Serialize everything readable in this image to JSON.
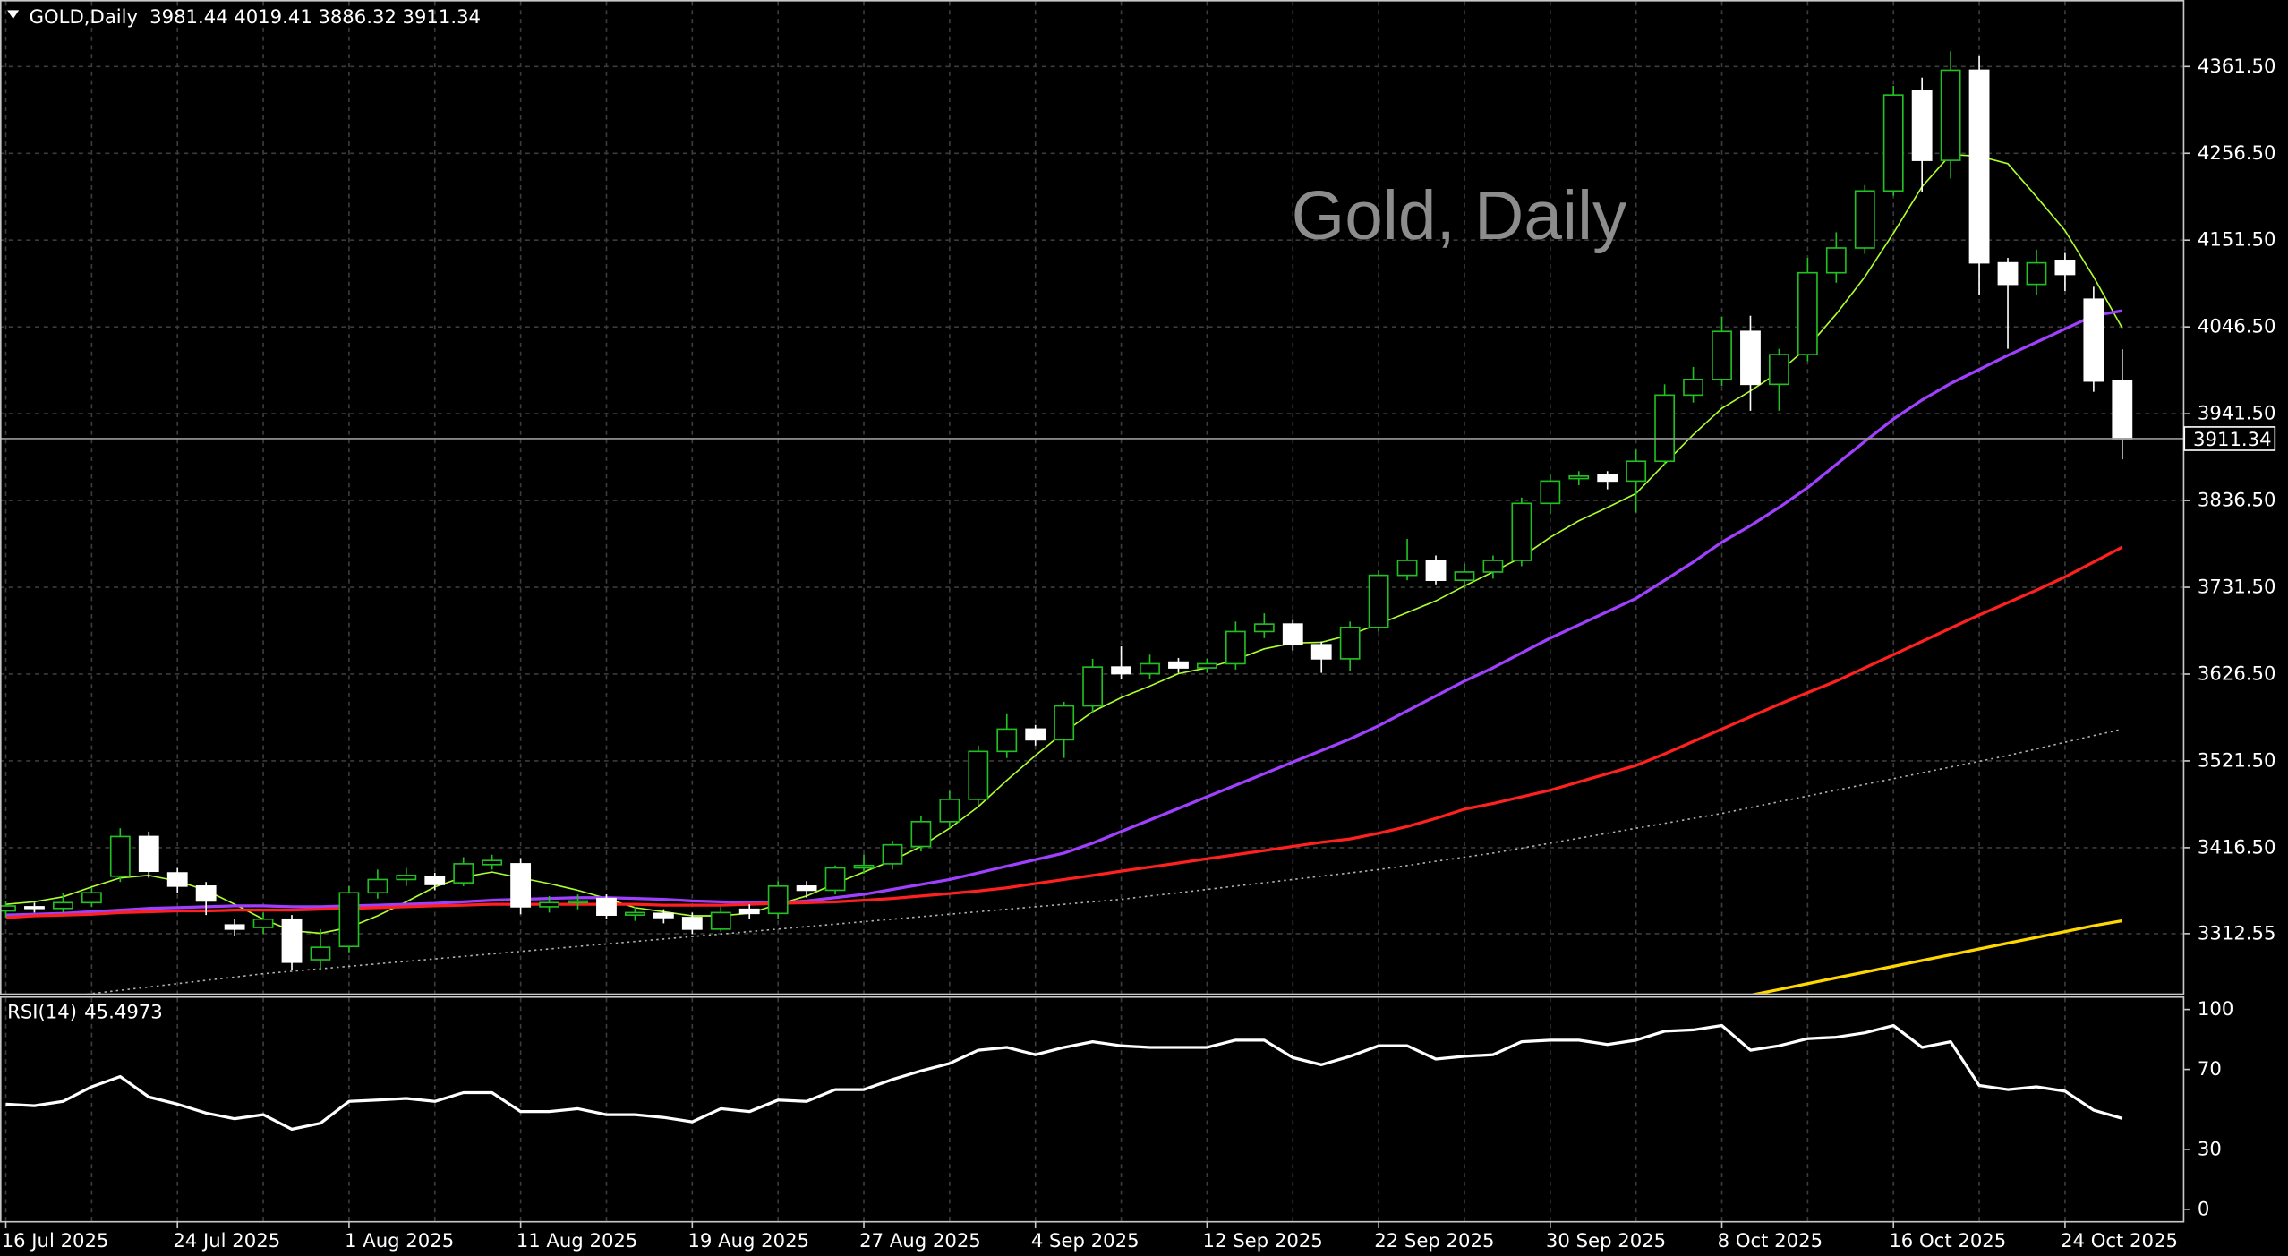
{
  "chart_data": [
    {
      "type": "candlestick",
      "title": "Gold, Daily",
      "symbol": "GOLD,Daily",
      "categories": [
        "16 Jul 2025",
        null,
        null,
        null,
        null,
        null,
        "24 Jul 2025",
        null,
        null,
        null,
        null,
        null,
        "1 Aug 2025",
        null,
        null,
        null,
        null,
        null,
        "11 Aug 2025",
        null,
        null,
        null,
        null,
        null,
        "19 Aug 2025",
        null,
        null,
        null,
        null,
        null,
        "27 Aug 2025",
        null,
        null,
        null,
        null,
        null,
        "4 Sep 2025",
        null,
        null,
        null,
        null,
        null,
        "12 Sep 2025",
        null,
        null,
        null,
        null,
        null,
        "22 Sep 2025",
        null,
        null,
        null,
        null,
        null,
        "30 Sep 2025",
        null,
        null,
        null,
        null,
        null,
        "8 Oct 2025",
        null,
        null,
        null,
        null,
        null,
        "16 Oct 2025",
        null,
        null,
        null,
        null,
        null,
        "24 Oct 2025",
        null,
        null
      ],
      "open": [
        3340,
        3345,
        3343,
        3350,
        3382,
        3430,
        3386,
        3370,
        3323,
        3320,
        3330,
        3281,
        3297,
        3362,
        3378,
        3381,
        3374,
        3396,
        3397,
        3345,
        3350,
        3355,
        3335,
        3337,
        3332,
        3318,
        3342,
        3337,
        3370,
        3365,
        3392,
        3397,
        3418,
        3448,
        3475,
        3533,
        3560,
        3547,
        3588,
        3635,
        3627,
        3641,
        3634,
        3639,
        3678,
        3687,
        3662,
        3645,
        3683,
        3746,
        3764,
        3740,
        3750,
        3764,
        3833,
        3863,
        3868,
        3860,
        3884,
        3964,
        3983,
        4041,
        3977,
        4013,
        4112,
        4142,
        4211,
        4332,
        4248,
        4357,
        4124,
        4098,
        4127,
        4080,
        3981.44
      ],
      "high": [
        3352,
        3350,
        3362,
        3368,
        3440,
        3436,
        3392,
        3375,
        3330,
        3338,
        3335,
        3318,
        3370,
        3390,
        3392,
        3386,
        3405,
        3408,
        3404,
        3358,
        3360,
        3360,
        3345,
        3342,
        3338,
        3345,
        3348,
        3376,
        3376,
        3395,
        3408,
        3425,
        3455,
        3485,
        3540,
        3578,
        3565,
        3593,
        3645,
        3660,
        3650,
        3646,
        3645,
        3690,
        3700,
        3692,
        3666,
        3690,
        3752,
        3790,
        3770,
        3760,
        3770,
        3840,
        3868,
        3872,
        3872,
        3898,
        3977,
        3998,
        4059,
        4060,
        4020,
        4130,
        4161,
        4218,
        4338,
        4348,
        4380,
        4375,
        4130,
        4140,
        4136,
        4095,
        4019.41
      ],
      "low": [
        3332,
        3338,
        3338,
        3345,
        3375,
        3380,
        3362,
        3335,
        3310,
        3312,
        3268,
        3268,
        3290,
        3355,
        3370,
        3365,
        3370,
        3390,
        3336,
        3338,
        3342,
        3330,
        3328,
        3325,
        3312,
        3315,
        3330,
        3330,
        3356,
        3360,
        3385,
        3390,
        3412,
        3440,
        3468,
        3525,
        3540,
        3525,
        3580,
        3620,
        3620,
        3628,
        3628,
        3632,
        3670,
        3655,
        3628,
        3630,
        3678,
        3740,
        3735,
        3730,
        3742,
        3757,
        3820,
        3855,
        3850,
        3822,
        3880,
        3955,
        3975,
        3945,
        3945,
        4005,
        4100,
        4135,
        4205,
        4210,
        4226,
        4085,
        4020,
        4085,
        4090,
        3968,
        3886.32
      ],
      "close": [
        3346,
        3343,
        3350,
        3362,
        3430,
        3388,
        3370,
        3352,
        3318,
        3330,
        3278,
        3296,
        3362,
        3378,
        3383,
        3372,
        3397,
        3401,
        3345,
        3350,
        3352,
        3335,
        3338,
        3332,
        3318,
        3338,
        3337,
        3370,
        3365,
        3392,
        3395,
        3420,
        3448,
        3475,
        3533,
        3560,
        3547,
        3588,
        3635,
        3627,
        3639,
        3634,
        3639,
        3678,
        3687,
        3662,
        3645,
        3683,
        3746,
        3764,
        3740,
        3750,
        3764,
        3833,
        3860,
        3866,
        3860,
        3884,
        3964,
        3983,
        4041,
        3977,
        4013,
        4112,
        4142,
        4211,
        4327,
        4248,
        4357,
        4124,
        4098,
        4124,
        4110,
        3981,
        3911.34
      ],
      "bull_color": "#22c022",
      "bear_color": "#ffffff",
      "lines": [
        {
          "color": "#adff2f",
          "width": 1,
          "values": [
            3348,
            3351,
            3357,
            3369,
            3380,
            3383,
            3376,
            3365,
            3348,
            3330,
            3316,
            3313,
            3320,
            3334,
            3351,
            3369,
            3381,
            3387,
            3380,
            3373,
            3365,
            3355,
            3344,
            3339,
            3334,
            3334,
            3337,
            3348,
            3358,
            3373,
            3387,
            3401,
            3418,
            3440,
            3466,
            3498,
            3528,
            3556,
            3581,
            3598,
            3612,
            3627,
            3634,
            3644,
            3657,
            3664,
            3665,
            3674,
            3687,
            3701,
            3715,
            3733,
            3750,
            3768,
            3792,
            3812,
            3828,
            3845,
            3881,
            3916,
            3948,
            3969,
            3992,
            4022,
            4062,
            4107,
            4160,
            4216,
            4255,
            4253,
            4244,
            4204,
            4163,
            4107,
            4045
          ]
        },
        {
          "color": "#a040ff",
          "width": 2,
          "values": [
            3335,
            3336,
            3337,
            3339,
            3341,
            3343,
            3344,
            3345,
            3346,
            3346,
            3345,
            3345,
            3346,
            3347,
            3348,
            3349,
            3351,
            3353,
            3354,
            3355,
            3356,
            3356,
            3355,
            3354,
            3352,
            3351,
            3350,
            3350,
            3352,
            3356,
            3360,
            3366,
            3372,
            3378,
            3386,
            3394,
            3402,
            3410,
            3422,
            3436,
            3450,
            3464,
            3478,
            3492,
            3506,
            3520,
            3534,
            3548,
            3564,
            3582,
            3600,
            3618,
            3634,
            3652,
            3670,
            3686,
            3702,
            3718,
            3740,
            3762,
            3786,
            3806,
            3828,
            3852,
            3880,
            3908,
            3935,
            3958,
            3978,
            3995,
            4012,
            4028,
            4044,
            4060,
            4066
          ]
        },
        {
          "color": "#ff2020",
          "width": 2,
          "values": [
            3332,
            3334,
            3335,
            3336,
            3338,
            3339,
            3340,
            3340,
            3341,
            3341,
            3341,
            3342,
            3343,
            3344,
            3345,
            3346,
            3347,
            3348,
            3348,
            3348,
            3348,
            3348,
            3348,
            3347,
            3347,
            3347,
            3348,
            3349,
            3350,
            3351,
            3353,
            3355,
            3358,
            3361,
            3364,
            3368,
            3373,
            3378,
            3383,
            3388,
            3393,
            3398,
            3403,
            3408,
            3413,
            3418,
            3423,
            3427,
            3434,
            3442,
            3452,
            3463,
            3470,
            3478,
            3486,
            3496,
            3506,
            3516,
            3530,
            3545,
            3560,
            3575,
            3590,
            3604,
            3618,
            3634,
            3650,
            3666,
            3682,
            3698,
            3713,
            3728,
            3744,
            3762,
            3780
          ]
        },
        {
          "color": "#b0b0b0",
          "width": 1,
          "dotted": true,
          "values": [
            3228,
            3232,
            3236,
            3240,
            3244,
            3248,
            3252,
            3256,
            3260,
            3264,
            3267,
            3270,
            3273,
            3276,
            3279,
            3282,
            3285,
            3288,
            3291,
            3294,
            3297,
            3300,
            3303,
            3306,
            3309,
            3312,
            3315,
            3318,
            3321,
            3324,
            3327,
            3330,
            3333,
            3336,
            3339,
            3342,
            3345,
            3348,
            3351,
            3354,
            3358,
            3362,
            3366,
            3370,
            3374,
            3378,
            3382,
            3386,
            3390,
            3395,
            3400,
            3405,
            3410,
            3416,
            3422,
            3428,
            3434,
            3440,
            3446,
            3452,
            3458,
            3465,
            3472,
            3479,
            3486,
            3493,
            3500,
            3507,
            3514,
            3521,
            3528,
            3536,
            3544,
            3552,
            3560
          ]
        },
        {
          "color": "#ffd700",
          "width": 2,
          "values": [
            null,
            null,
            null,
            null,
            null,
            null,
            null,
            null,
            null,
            null,
            null,
            null,
            null,
            null,
            null,
            null,
            null,
            null,
            null,
            null,
            null,
            null,
            null,
            null,
            null,
            null,
            null,
            null,
            null,
            null,
            null,
            null,
            null,
            null,
            null,
            null,
            null,
            null,
            null,
            null,
            null,
            null,
            null,
            null,
            null,
            null,
            null,
            null,
            null,
            null,
            null,
            null,
            null,
            null,
            null,
            null,
            null,
            null,
            null,
            null,
            null,
            3238,
            3245,
            3252,
            3259,
            3266,
            3273,
            3280,
            3287,
            3294,
            3301,
            3308,
            3315,
            3322,
            3328
          ]
        }
      ],
      "ylim": [
        3240.2,
        4440.2
      ],
      "yticks": [
        3312.55,
        {
          "value": 3416.5,
          "label": "3416.50"
        },
        {
          "value": 3521.5,
          "label": "3521.50"
        },
        {
          "value": 3626.5,
          "label": "3626.50"
        },
        {
          "value": 3731.5,
          "label": "3731.50"
        },
        {
          "value": 3836.5,
          "label": "3836.50"
        },
        {
          "value": 3941.5,
          "label": "3941.50"
        },
        {
          "value": 4046.5,
          "label": "4046.50"
        },
        {
          "value": 4151.5,
          "label": "4151.50"
        },
        {
          "value": 4256.5,
          "label": "4256.50"
        },
        {
          "value": 4361.5,
          "label": "4361.50"
        }
      ],
      "grid": true
    },
    {
      "type": "line",
      "title": "RSI(14)",
      "color": "#ffffff",
      "values": [
        52.6,
        51.8,
        54.0,
        61.3,
        66.4,
        56.2,
        52.6,
        48.2,
        45.3,
        47.4,
        40.1,
        43.1,
        54.0,
        54.7,
        55.5,
        54.0,
        58.4,
        58.4,
        48.9,
        48.9,
        50.4,
        47.4,
        47.4,
        46.0,
        43.8,
        50.4,
        48.9,
        54.7,
        54.0,
        59.9,
        59.9,
        65.0,
        69.3,
        73.0,
        79.6,
        81.0,
        77.4,
        81.0,
        83.9,
        81.8,
        81.0,
        81.0,
        81.0,
        84.7,
        84.7,
        75.9,
        72.3,
        76.6,
        81.8,
        81.8,
        75.2,
        76.6,
        77.4,
        83.9,
        84.7,
        84.7,
        82.5,
        84.7,
        89.1,
        89.8,
        92.0,
        79.6,
        81.8,
        85.4,
        86.1,
        88.3,
        92.0,
        81.0,
        83.9,
        62.0,
        59.9,
        61.3,
        59.1,
        49.6,
        45.4973
      ],
      "ylim": [
        0,
        100
      ],
      "yticks": [
        0,
        30,
        70,
        100
      ]
    }
  ]
}
